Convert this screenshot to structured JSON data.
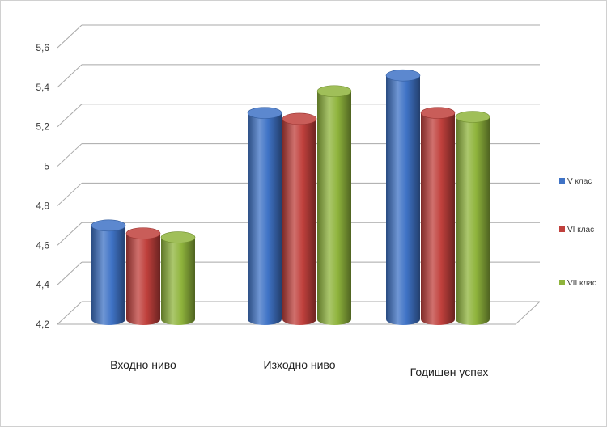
{
  "chart_data": {
    "type": "bar",
    "style": "3d-cylinder",
    "title": "",
    "xlabel": "",
    "ylabel": "",
    "categories": [
      "Входно ниво",
      "Изходно ниво",
      "Годишен успех"
    ],
    "series": [
      {
        "name": "V клас",
        "values": [
          4.7,
          5.27,
          5.46
        ],
        "color": "#3f73c6"
      },
      {
        "name": "VI клас",
        "values": [
          4.66,
          5.24,
          5.27
        ],
        "color": "#c0403c"
      },
      {
        "name": "VII клас",
        "values": [
          4.64,
          5.38,
          5.25
        ],
        "color": "#8fb43c"
      }
    ],
    "ylim": [
      4.2,
      5.6
    ],
    "yticks": [
      "4,2",
      "4,4",
      "4,6",
      "4,8",
      "5",
      "5,2",
      "5,4",
      "5,6"
    ],
    "grid": true,
    "legend_position": "right"
  }
}
